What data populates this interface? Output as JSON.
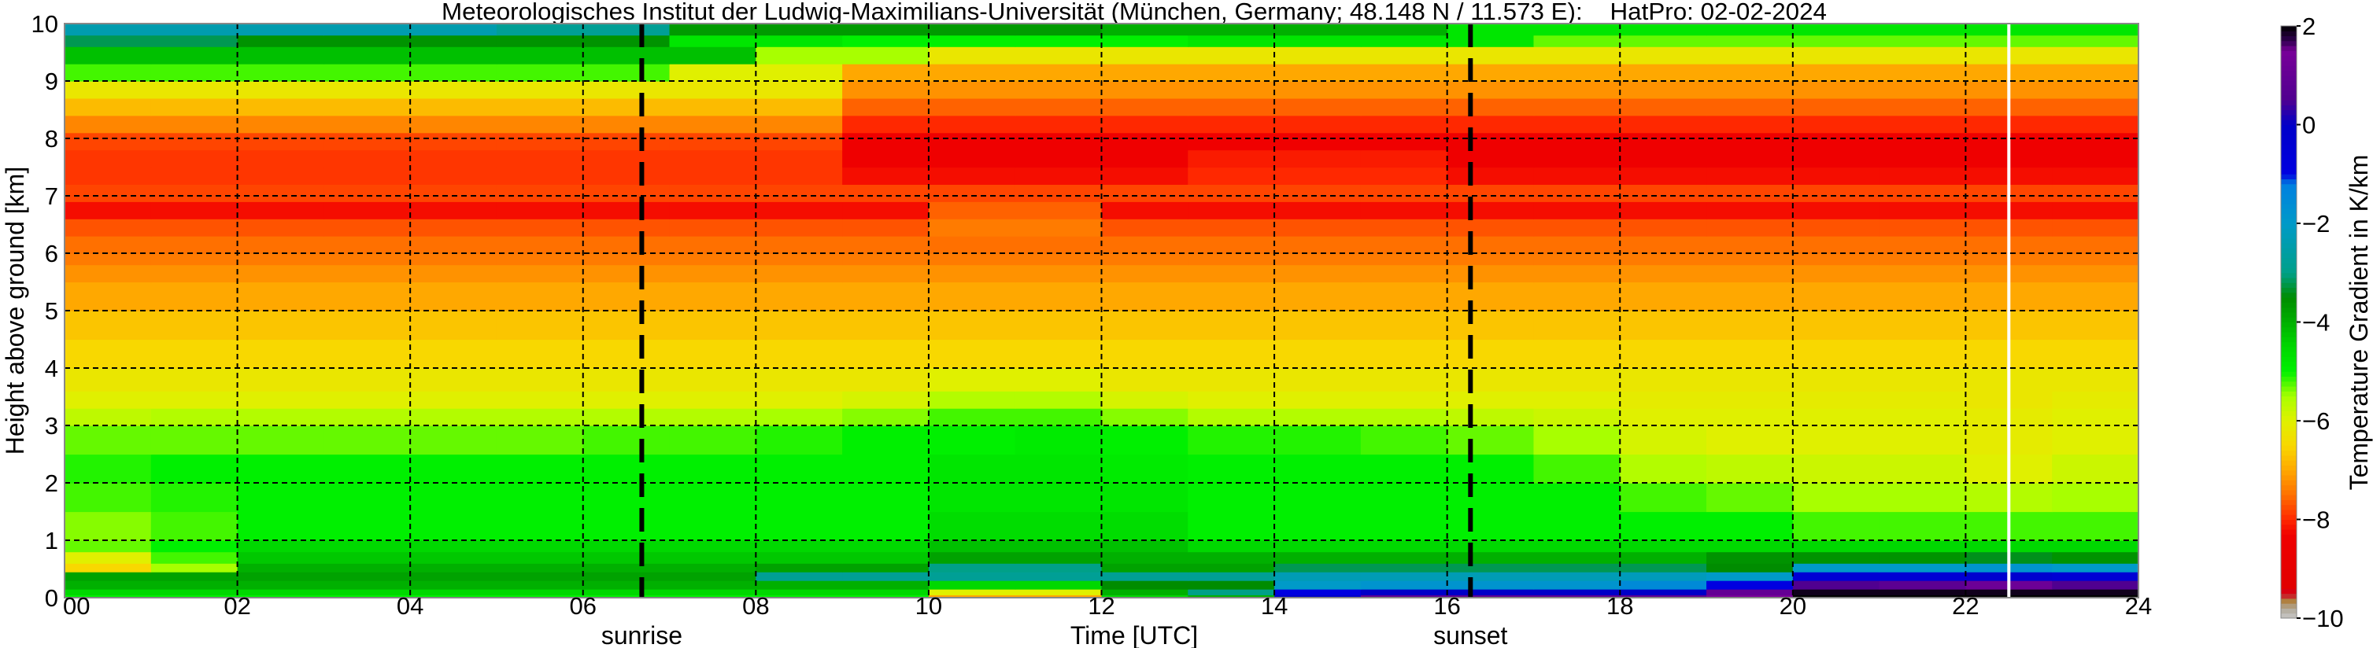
{
  "chart_data": {
    "type": "heatmap",
    "title": "Meteorologisches Institut der Ludwig-Maximilians-Universität (München, Germany; 48.148 N / 11.573 E):    HatPro: 02-02-2024",
    "xlabel": "Time [UTC]",
    "ylabel": "Height above ground [km]",
    "xlim": [
      0,
      24
    ],
    "ylim": [
      0,
      10
    ],
    "x_ticks": [
      "00",
      "02",
      "04",
      "06",
      "08",
      "10",
      "12",
      "14",
      "16",
      "18",
      "20",
      "22",
      "24"
    ],
    "y_ticks": [
      "0",
      "1",
      "2",
      "3",
      "4",
      "5",
      "6",
      "7",
      "8",
      "9",
      "10"
    ],
    "grid": true,
    "colorbar": {
      "label": "Temperature Gradient in K/km",
      "range": [
        -10,
        2
      ],
      "ticks": [
        "2",
        "0",
        "−2",
        "−4",
        "−6",
        "−8",
        "−10"
      ],
      "tick_values": [
        2,
        0,
        -2,
        -4,
        -6,
        -8,
        -10
      ],
      "colormap": [
        [
          -10,
          "#c8c8c8"
        ],
        [
          -9.8,
          "#b0a898"
        ],
        [
          -9.65,
          "#b08040"
        ],
        [
          -9.5,
          "#d00020"
        ],
        [
          -9.4,
          "#e00000"
        ],
        [
          -8.3,
          "#f00000"
        ],
        [
          -8,
          "#ff2800"
        ],
        [
          -7.5,
          "#ff7000"
        ],
        [
          -7,
          "#ffa800"
        ],
        [
          -6.5,
          "#f8d800"
        ],
        [
          -6,
          "#e0f000"
        ],
        [
          -5.5,
          "#a8ff00"
        ],
        [
          -5,
          "#00f000"
        ],
        [
          -4.5,
          "#00d800"
        ],
        [
          -4,
          "#00b000"
        ],
        [
          -3.5,
          "#008c00"
        ],
        [
          -3,
          "#00a088"
        ],
        [
          -2,
          "#009ac8"
        ],
        [
          -1.2,
          "#0080e0"
        ],
        [
          -1,
          "#0000e0"
        ],
        [
          0,
          "#0000c8"
        ],
        [
          0.5,
          "#500090"
        ],
        [
          1.5,
          "#780098"
        ],
        [
          1.7,
          "#300050"
        ],
        [
          2,
          "#000000"
        ]
      ]
    },
    "annotations": [
      {
        "label": "sunrise",
        "hour": 6.68
      },
      {
        "label": "sunset",
        "hour": 16.27
      }
    ],
    "data_gap_hour": 22.5,
    "time_hours": [
      0,
      1,
      2,
      3,
      4,
      5,
      6,
      7,
      8,
      9,
      10,
      11,
      12,
      13,
      14,
      15,
      16,
      17,
      18,
      19,
      20,
      21,
      22,
      23
    ],
    "height_levels_km": [
      0,
      0.05,
      0.15,
      0.3,
      0.45,
      0.6,
      0.8,
      1.0,
      1.5,
      2.0,
      2.5,
      3.0,
      3.3,
      3.6,
      4.0,
      4.5,
      5.0,
      5.5,
      5.8,
      6.0,
      6.3,
      6.6,
      6.9,
      7.2,
      7.5,
      7.8,
      8.1,
      8.4,
      8.7,
      9.0,
      9.3,
      9.6,
      9.8
    ],
    "values": [
      [
        -5,
        -5,
        -5,
        -5,
        -5,
        -5,
        -5,
        -5,
        -5,
        -5,
        -7,
        -7,
        -4.5,
        -4,
        0,
        0.8,
        0.8,
        0.8,
        0.8,
        1.5,
        2,
        2,
        2,
        2
      ],
      [
        -4.5,
        -4.5,
        -4.5,
        -4.5,
        -4.5,
        -4.5,
        -4.5,
        -4.5,
        -4.5,
        -4.5,
        -6,
        -6,
        -4,
        -3,
        -1,
        0,
        0,
        0,
        0,
        1,
        1.9,
        1.9,
        1.9,
        1.9
      ],
      [
        -4,
        -4,
        -4,
        -4,
        -4,
        -4,
        -4,
        -4,
        -4,
        -4,
        -4.5,
        -4.5,
        -3.5,
        -3.5,
        -2,
        -1.8,
        -1.8,
        -1.8,
        -1.5,
        -1,
        0.5,
        0.8,
        1.2,
        0.5
      ],
      [
        -3.8,
        -3.8,
        -3.8,
        -3.8,
        -3.8,
        -3.8,
        -3.8,
        -3.8,
        -2.8,
        -2.8,
        -2.8,
        -2.8,
        -2.8,
        -2.8,
        -2.3,
        -2.3,
        -2.3,
        -2.3,
        -2.2,
        -2,
        -0.5,
        -0.5,
        -0.3,
        -0.5
      ],
      [
        -6.5,
        -5.5,
        -4,
        -4,
        -4,
        -4,
        -4,
        -4,
        -3.8,
        -3.8,
        -3,
        -3,
        -3.8,
        -3.8,
        -3.2,
        -3.2,
        -3.2,
        -3.2,
        -3.2,
        -3.5,
        -2,
        -2,
        -1.8,
        -2
      ],
      [
        -6,
        -5.2,
        -4.3,
        -4.3,
        -4.3,
        -4.3,
        -4.3,
        -4.3,
        -4.3,
        -4.3,
        -3.8,
        -3.8,
        -4,
        -4,
        -4,
        -4,
        -4,
        -4,
        -4,
        -3.6,
        -3.6,
        -3.6,
        -3.4,
        -3.6
      ],
      [
        -5.3,
        -5,
        -4.5,
        -4.5,
        -4.5,
        -4.5,
        -4.5,
        -4.5,
        -4.5,
        -4.5,
        -4.2,
        -4.2,
        -4.2,
        -4.5,
        -4.5,
        -4.5,
        -4.5,
        -4.5,
        -4.5,
        -4.5,
        -4.5,
        -4.5,
        -4.5,
        -4.5
      ],
      [
        -5.4,
        -5.2,
        -5,
        -5,
        -5,
        -5,
        -5,
        -5,
        -5,
        -5,
        -4.6,
        -4.6,
        -4.6,
        -5,
        -5,
        -5,
        -5,
        -5,
        -5,
        -5,
        -5.2,
        -5.2,
        -5.2,
        -5.2
      ],
      [
        -5.2,
        -5.1,
        -5,
        -5,
        -5,
        -5,
        -5,
        -5,
        -5,
        -5,
        -4.8,
        -4.8,
        -4.8,
        -5,
        -5,
        -5,
        -5,
        -5,
        -5.2,
        -5.3,
        -5.5,
        -5.5,
        -5.6,
        -5.5
      ],
      [
        -5.1,
        -5,
        -5,
        -5,
        -5,
        -5,
        -5,
        -5,
        -5,
        -5,
        -4.8,
        -4.8,
        -4.9,
        -5,
        -5,
        -5,
        -5,
        -5.2,
        -5.6,
        -5.7,
        -5.8,
        -5.8,
        -6,
        -5.8
      ],
      [
        -5.3,
        -5.3,
        -5.3,
        -5.3,
        -5.3,
        -5.3,
        -5.2,
        -5.2,
        -5.1,
        -5,
        -5,
        -4.9,
        -5,
        -5.1,
        -5.1,
        -5.2,
        -5.3,
        -5.5,
        -5.9,
        -6,
        -6,
        -6,
        -6.1,
        -6
      ],
      [
        -5.7,
        -5.6,
        -5.6,
        -5.6,
        -5.6,
        -5.6,
        -5.6,
        -5.6,
        -5.5,
        -5.4,
        -5.2,
        -5.2,
        -5.4,
        -5.6,
        -5.6,
        -5.6,
        -5.7,
        -5.8,
        -6,
        -6,
        -6,
        -6,
        -6.1,
        -6
      ],
      [
        -6,
        -6,
        -6,
        -6,
        -6,
        -6,
        -6,
        -6,
        -6,
        -5.9,
        -5.6,
        -5.6,
        -5.9,
        -6,
        -6,
        -6,
        -6,
        -6,
        -6.1,
        -6.1,
        -6.1,
        -6.1,
        -6.2,
        -6.1
      ],
      [
        -6.2,
        -6.2,
        -6.2,
        -6.2,
        -6.2,
        -6.2,
        -6.2,
        -6.2,
        -6.2,
        -6.2,
        -6.0,
        -6.0,
        -6.2,
        -6.2,
        -6.2,
        -6.2,
        -6.2,
        -6.2,
        -6.2,
        -6.2,
        -6.2,
        -6.2,
        -6.2,
        -6.2
      ],
      [
        -6.5,
        -6.5,
        -6.5,
        -6.5,
        -6.5,
        -6.5,
        -6.5,
        -6.5,
        -6.5,
        -6.5,
        -6.5,
        -6.5,
        -6.5,
        -6.5,
        -6.5,
        -6.5,
        -6.5,
        -6.5,
        -6.5,
        -6.5,
        -6.5,
        -6.5,
        -6.5,
        -6.5
      ],
      [
        -6.7,
        -6.7,
        -6.7,
        -6.7,
        -6.7,
        -6.7,
        -6.7,
        -6.7,
        -6.7,
        -6.7,
        -6.7,
        -6.7,
        -6.7,
        -6.7,
        -6.7,
        -6.7,
        -6.7,
        -6.7,
        -6.7,
        -6.7,
        -6.7,
        -6.7,
        -6.7,
        -6.7
      ],
      [
        -7.0,
        -7.0,
        -7.0,
        -7.0,
        -7.0,
        -7.0,
        -7.0,
        -7.0,
        -7.0,
        -7.0,
        -7.0,
        -7.0,
        -7.0,
        -7.0,
        -7.0,
        -7.0,
        -7.0,
        -7.0,
        -7.0,
        -7.0,
        -7.0,
        -7.0,
        -7.0,
        -7.0
      ],
      [
        -7.2,
        -7.2,
        -7.2,
        -7.2,
        -7.2,
        -7.2,
        -7.2,
        -7.2,
        -7.2,
        -7.2,
        -7.2,
        -7.2,
        -7.2,
        -7.2,
        -7.2,
        -7.2,
        -7.2,
        -7.2,
        -7.2,
        -7.2,
        -7.2,
        -7.2,
        -7.2,
        -7.2
      ],
      [
        -7.4,
        -7.4,
        -7.4,
        -7.4,
        -7.4,
        -7.4,
        -7.4,
        -7.4,
        -7.4,
        -7.4,
        -7.4,
        -7.4,
        -7.4,
        -7.4,
        -7.4,
        -7.4,
        -7.4,
        -7.4,
        -7.4,
        -7.4,
        -7.4,
        -7.4,
        -7.4,
        -7.4
      ],
      [
        -7.5,
        -7.5,
        -7.5,
        -7.5,
        -7.5,
        -7.5,
        -7.5,
        -7.5,
        -7.5,
        -7.5,
        -7.5,
        -7.5,
        -7.5,
        -7.5,
        -7.5,
        -7.5,
        -7.5,
        -7.5,
        -7.5,
        -7.5,
        -7.5,
        -7.5,
        -7.5,
        -7.5
      ],
      [
        -7.7,
        -7.7,
        -7.7,
        -7.7,
        -7.7,
        -7.7,
        -7.7,
        -7.7,
        -7.7,
        -7.7,
        -7.4,
        -7.4,
        -7.7,
        -7.7,
        -7.7,
        -7.7,
        -7.7,
        -7.7,
        -7.7,
        -7.7,
        -7.7,
        -7.7,
        -7.7,
        -7.7
      ],
      [
        -8.2,
        -8.2,
        -8.2,
        -8.2,
        -8.2,
        -8.2,
        -8.2,
        -8.2,
        -8.2,
        -8.2,
        -7.6,
        -7.6,
        -8.2,
        -8.2,
        -8.2,
        -8.2,
        -8.2,
        -8.2,
        -8.2,
        -8.2,
        -8.2,
        -8.2,
        -8.2,
        -8.2
      ],
      [
        -7.8,
        -7.8,
        -7.8,
        -7.8,
        -7.8,
        -7.8,
        -7.8,
        -7.8,
        -7.8,
        -7.8,
        -7.8,
        -7.8,
        -7.8,
        -7.8,
        -7.8,
        -7.8,
        -7.8,
        -7.8,
        -7.8,
        -7.8,
        -7.8,
        -7.8,
        -7.8,
        -7.8
      ],
      [
        -7.9,
        -7.9,
        -7.9,
        -7.9,
        -7.9,
        -7.9,
        -7.9,
        -7.9,
        -7.9,
        -8.2,
        -8.2,
        -8.2,
        -8.2,
        -8.0,
        -8.0,
        -8.0,
        -8.2,
        -8.2,
        -8.2,
        -8.2,
        -8.2,
        -8.2,
        -8.2,
        -8.2
      ],
      [
        -7.9,
        -7.9,
        -7.9,
        -7.9,
        -7.9,
        -7.9,
        -7.9,
        -7.9,
        -7.9,
        -8.4,
        -8.4,
        -8.4,
        -8.4,
        -8.1,
        -8.1,
        -8.1,
        -8.4,
        -8.4,
        -8.4,
        -8.4,
        -8.4,
        -8.4,
        -8.4,
        -8.4
      ],
      [
        -7.8,
        -7.8,
        -7.8,
        -7.8,
        -7.8,
        -7.8,
        -7.8,
        -7.8,
        -7.8,
        -8.4,
        -8.4,
        -8.4,
        -8.4,
        -8.3,
        -8.3,
        -8.3,
        -8.4,
        -8.4,
        -8.4,
        -8.4,
        -8.4,
        -8.4,
        -8.4,
        -8.4
      ],
      [
        -7.3,
        -7.3,
        -7.3,
        -7.3,
        -7.3,
        -7.3,
        -7.3,
        -7.3,
        -7.3,
        -8.0,
        -8.0,
        -8.0,
        -8.0,
        -8.0,
        -8.0,
        -8.0,
        -8.0,
        -8.0,
        -8.0,
        -8.0,
        -8.0,
        -8.0,
        -8.0,
        -8.0
      ],
      [
        -6.8,
        -6.8,
        -6.8,
        -6.8,
        -6.8,
        -6.8,
        -6.8,
        -6.8,
        -6.8,
        -7.6,
        -7.6,
        -7.6,
        -7.6,
        -7.6,
        -7.6,
        -7.6,
        -7.6,
        -7.6,
        -7.6,
        -7.6,
        -7.6,
        -7.6,
        -7.6,
        -7.6
      ],
      [
        -6.2,
        -6.2,
        -6.2,
        -6.2,
        -6.2,
        -6.2,
        -6.2,
        -6.2,
        -6.2,
        -7.2,
        -7.2,
        -7.2,
        -7.2,
        -7.2,
        -7.2,
        -7.2,
        -7.2,
        -7.2,
        -7.2,
        -7.2,
        -7.2,
        -7.2,
        -7.2,
        -7.2
      ],
      [
        -5.2,
        -5.2,
        -5.2,
        -5.2,
        -5.2,
        -5.2,
        -5.2,
        -6,
        -6,
        -7.0,
        -7.0,
        -7.0,
        -7.0,
        -7.0,
        -7.0,
        -7.0,
        -7.0,
        -7.0,
        -7.0,
        -7.0,
        -7.0,
        -7.0,
        -7.0,
        -7.0
      ],
      [
        -4.2,
        -4.2,
        -4.2,
        -4.2,
        -4.2,
        -4.2,
        -4.2,
        -4.2,
        -5.5,
        -5.5,
        -6.2,
        -6.2,
        -6.2,
        -6.2,
        -6.2,
        -6.2,
        -6.2,
        -6.2,
        -6.2,
        -6.2,
        -6.2,
        -6.2,
        -6.2,
        -6.2
      ],
      [
        -3.2,
        -3.2,
        -3.6,
        -3.6,
        -3.6,
        -3.6,
        -3.6,
        -4.8,
        -4.8,
        -5,
        -5,
        -5,
        -5,
        -4.8,
        -4.8,
        -4.8,
        -4.8,
        -5.3,
        -5.3,
        -5.3,
        -5.3,
        -5.3,
        -5.3,
        -5.3
      ],
      [
        -2.4,
        -2.4,
        -2.4,
        -2.4,
        -2.4,
        -2.8,
        -2.8,
        -3.7,
        -3.7,
        -3.7,
        -3.7,
        -3.7,
        -4.0,
        -4.0,
        -4.0,
        -4.0,
        -4.8,
        -4.8,
        -4.8,
        -4.8,
        -4.8,
        -4.8,
        -4.8,
        -4.8
      ]
    ]
  }
}
